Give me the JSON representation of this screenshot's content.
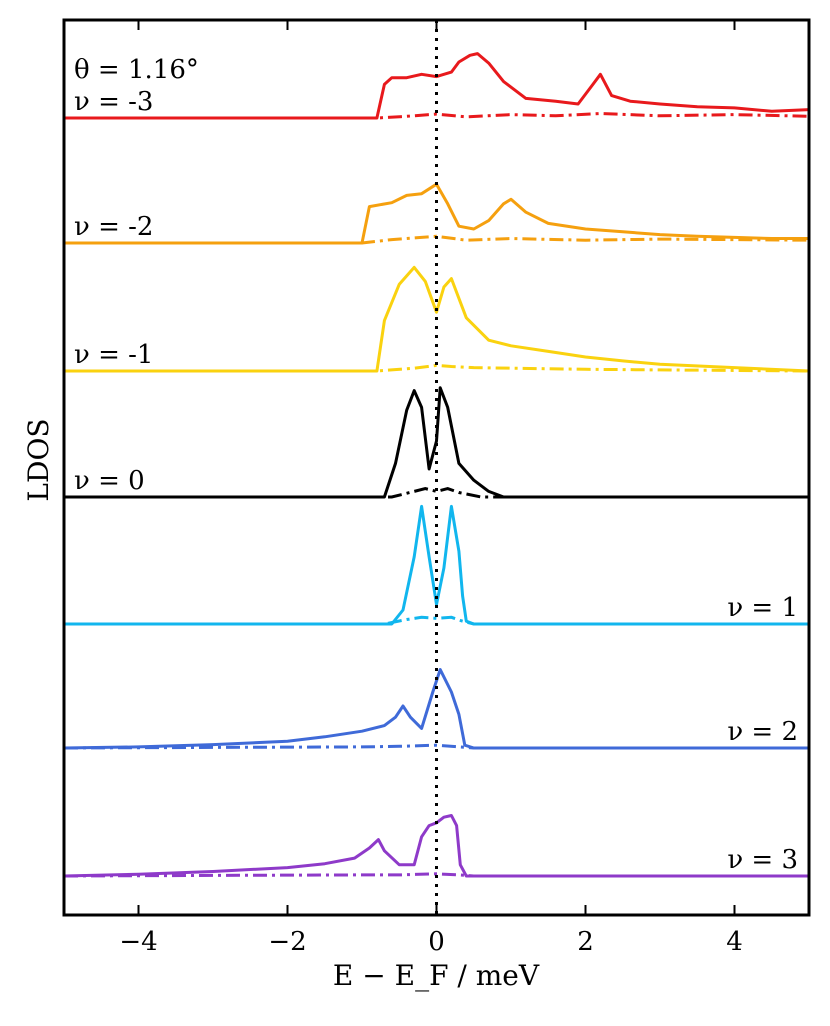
{
  "chart_data": {
    "type": "line",
    "annotation": "θ = 1.16°",
    "xlabel": "E − E_F / meV",
    "ylabel": "LDOS",
    "xlim": [
      -5,
      5
    ],
    "x_ticks": [
      -4,
      -2,
      0,
      2,
      4
    ],
    "x_tick_labels": [
      "−4",
      "−2",
      "0",
      "2",
      "4"
    ],
    "fermi_level_line": 0,
    "grid": false,
    "legend": "none",
    "series": [
      {
        "name": "ν = -3",
        "color": "#e8191c",
        "label_side": "left",
        "solid": [
          [
            -5,
            0
          ],
          [
            -0.8,
            0
          ],
          [
            -0.7,
            0.6
          ],
          [
            -0.6,
            0.72
          ],
          [
            -0.4,
            0.72
          ],
          [
            -0.2,
            0.78
          ],
          [
            0,
            0.74
          ],
          [
            0.2,
            0.82
          ],
          [
            0.3,
            1.0
          ],
          [
            0.45,
            1.12
          ],
          [
            0.55,
            1.15
          ],
          [
            0.7,
            0.98
          ],
          [
            0.9,
            0.65
          ],
          [
            1.2,
            0.35
          ],
          [
            1.6,
            0.3
          ],
          [
            1.9,
            0.25
          ],
          [
            2.1,
            0.6
          ],
          [
            2.2,
            0.78
          ],
          [
            2.35,
            0.4
          ],
          [
            2.6,
            0.3
          ],
          [
            3.0,
            0.25
          ],
          [
            3.5,
            0.2
          ],
          [
            4.0,
            0.18
          ],
          [
            4.5,
            0.12
          ],
          [
            5,
            0.15
          ]
        ],
        "dashed": [
          [
            -5,
            0
          ],
          [
            -0.8,
            0
          ],
          [
            -0.4,
            0.03
          ],
          [
            0,
            0.07
          ],
          [
            0.4,
            0.02
          ],
          [
            1.0,
            0.06
          ],
          [
            1.6,
            0.04
          ],
          [
            2.2,
            0.08
          ],
          [
            3,
            0.04
          ],
          [
            4,
            0.06
          ],
          [
            5,
            0.03
          ]
        ]
      },
      {
        "name": "ν = -2",
        "color": "#f5a00f",
        "label_side": "left",
        "solid": [
          [
            -5,
            0
          ],
          [
            -1.0,
            0
          ],
          [
            -0.9,
            0.65
          ],
          [
            -0.6,
            0.72
          ],
          [
            -0.4,
            0.85
          ],
          [
            -0.2,
            0.88
          ],
          [
            0,
            1.05
          ],
          [
            0.15,
            0.7
          ],
          [
            0.3,
            0.3
          ],
          [
            0.5,
            0.25
          ],
          [
            0.7,
            0.4
          ],
          [
            0.9,
            0.7
          ],
          [
            1.0,
            0.78
          ],
          [
            1.2,
            0.55
          ],
          [
            1.5,
            0.35
          ],
          [
            2.0,
            0.25
          ],
          [
            2.5,
            0.2
          ],
          [
            3.0,
            0.15
          ],
          [
            3.5,
            0.12
          ],
          [
            4.0,
            0.1
          ],
          [
            4.5,
            0.08
          ],
          [
            5,
            0.08
          ]
        ],
        "dashed": [
          [
            -5,
            0
          ],
          [
            -1.0,
            0
          ],
          [
            -0.6,
            0.06
          ],
          [
            -0.2,
            0.1
          ],
          [
            0,
            0.12
          ],
          [
            0.4,
            0.05
          ],
          [
            1,
            0.08
          ],
          [
            2,
            0.05
          ],
          [
            3,
            0.07
          ],
          [
            4,
            0.06
          ],
          [
            5,
            0.05
          ]
        ]
      },
      {
        "name": "ν = -1",
        "color": "#fad20f",
        "label_side": "left",
        "solid": [
          [
            -5,
            0
          ],
          [
            -0.8,
            0
          ],
          [
            -0.7,
            0.9
          ],
          [
            -0.5,
            1.55
          ],
          [
            -0.3,
            1.85
          ],
          [
            -0.15,
            1.6
          ],
          [
            0,
            1.05
          ],
          [
            0.1,
            1.5
          ],
          [
            0.2,
            1.65
          ],
          [
            0.4,
            0.95
          ],
          [
            0.7,
            0.55
          ],
          [
            1,
            0.45
          ],
          [
            1.5,
            0.35
          ],
          [
            2,
            0.25
          ],
          [
            2.5,
            0.18
          ],
          [
            3,
            0.12
          ],
          [
            4,
            0.06
          ],
          [
            5,
            0
          ]
        ],
        "dashed": [
          [
            -5,
            0
          ],
          [
            -0.8,
            0
          ],
          [
            -0.3,
            0.05
          ],
          [
            0,
            0.1
          ],
          [
            0.2,
            0.08
          ],
          [
            0.5,
            0.06
          ],
          [
            1,
            0.05
          ],
          [
            2,
            0.03
          ],
          [
            3,
            0.02
          ],
          [
            5,
            0
          ]
        ]
      },
      {
        "name": "ν = 0",
        "color": "#000000",
        "label_side": "left",
        "solid": [
          [
            -5,
            0
          ],
          [
            -0.7,
            0
          ],
          [
            -0.55,
            0.6
          ],
          [
            -0.4,
            1.55
          ],
          [
            -0.3,
            1.9
          ],
          [
            -0.2,
            1.6
          ],
          [
            -0.1,
            0.5
          ],
          [
            0,
            1.0
          ],
          [
            0.05,
            1.95
          ],
          [
            0.15,
            1.6
          ],
          [
            0.3,
            0.6
          ],
          [
            0.5,
            0.3
          ],
          [
            0.7,
            0.1
          ],
          [
            0.9,
            0
          ],
          [
            5,
            0
          ]
        ],
        "dashed": [
          [
            -5,
            0
          ],
          [
            -0.6,
            0
          ],
          [
            -0.3,
            0.1
          ],
          [
            -0.15,
            0.15
          ],
          [
            0,
            0.1
          ],
          [
            0.15,
            0.15
          ],
          [
            0.3,
            0.08
          ],
          [
            0.6,
            0
          ],
          [
            5,
            0
          ]
        ]
      },
      {
        "name": "ν = 1",
        "color": "#11b6ee",
        "label_side": "right",
        "solid": [
          [
            -5,
            0
          ],
          [
            -0.6,
            0
          ],
          [
            -0.45,
            0.25
          ],
          [
            -0.3,
            1.2
          ],
          [
            -0.2,
            2.1
          ],
          [
            -0.1,
            1.2
          ],
          [
            0,
            0.35
          ],
          [
            0.1,
            1.0
          ],
          [
            0.2,
            2.1
          ],
          [
            0.3,
            1.3
          ],
          [
            0.35,
            0.5
          ],
          [
            0.4,
            0.05
          ],
          [
            0.5,
            0
          ],
          [
            5,
            0
          ]
        ],
        "dashed": [
          [
            -5,
            0
          ],
          [
            -0.7,
            0
          ],
          [
            -0.4,
            0.08
          ],
          [
            -0.2,
            0.12
          ],
          [
            0,
            0.1
          ],
          [
            0.2,
            0.12
          ],
          [
            0.35,
            0.05
          ],
          [
            0.5,
            0
          ],
          [
            5,
            0
          ]
        ]
      },
      {
        "name": "ν = 2",
        "color": "#3f6ad8",
        "label_side": "right",
        "solid": [
          [
            -5,
            0
          ],
          [
            -4,
            0.02
          ],
          [
            -3,
            0.06
          ],
          [
            -2,
            0.12
          ],
          [
            -1.5,
            0.2
          ],
          [
            -1,
            0.3
          ],
          [
            -0.7,
            0.4
          ],
          [
            -0.55,
            0.55
          ],
          [
            -0.45,
            0.75
          ],
          [
            -0.35,
            0.55
          ],
          [
            -0.2,
            0.35
          ],
          [
            -0.05,
            1.0
          ],
          [
            0.05,
            1.4
          ],
          [
            0.2,
            1.0
          ],
          [
            0.3,
            0.6
          ],
          [
            0.38,
            0.05
          ],
          [
            0.5,
            0
          ],
          [
            5,
            0
          ]
        ],
        "dashed": [
          [
            -5,
            0
          ],
          [
            -3,
            0.01
          ],
          [
            -1,
            0.02
          ],
          [
            -0.5,
            0.03
          ],
          [
            0,
            0.05
          ],
          [
            0.3,
            0.02
          ],
          [
            0.5,
            0
          ],
          [
            5,
            0
          ]
        ]
      },
      {
        "name": "ν = 3",
        "color": "#8e3ac9",
        "label_side": "right",
        "solid": [
          [
            -5,
            0
          ],
          [
            -4,
            0.03
          ],
          [
            -3,
            0.08
          ],
          [
            -2,
            0.15
          ],
          [
            -1.5,
            0.22
          ],
          [
            -1.1,
            0.32
          ],
          [
            -0.9,
            0.5
          ],
          [
            -0.78,
            0.65
          ],
          [
            -0.7,
            0.45
          ],
          [
            -0.5,
            0.2
          ],
          [
            -0.3,
            0.2
          ],
          [
            -0.2,
            0.7
          ],
          [
            -0.1,
            0.9
          ],
          [
            0,
            0.95
          ],
          [
            0.1,
            1.05
          ],
          [
            0.2,
            1.08
          ],
          [
            0.27,
            0.9
          ],
          [
            0.32,
            0.2
          ],
          [
            0.4,
            0
          ],
          [
            5,
            0
          ]
        ],
        "dashed": [
          [
            -5,
            0
          ],
          [
            -3,
            0.01
          ],
          [
            -1,
            0.02
          ],
          [
            -0.5,
            0.02
          ],
          [
            0,
            0.04
          ],
          [
            0.3,
            0.02
          ],
          [
            0.5,
            0
          ],
          [
            5,
            0
          ]
        ]
      }
    ]
  }
}
